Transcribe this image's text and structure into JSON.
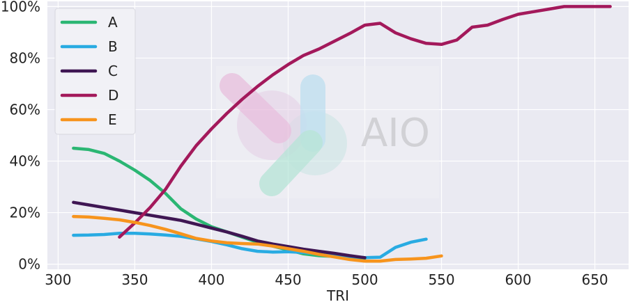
{
  "chart_data": {
    "type": "line",
    "xlabel": "TRI",
    "ylabel": "",
    "xlim": [
      293,
      672
    ],
    "ylim": [
      -0.02,
      1.02
    ],
    "x_ticks": [
      300,
      350,
      400,
      450,
      500,
      550,
      600,
      650
    ],
    "x_tick_labels": [
      "300",
      "350",
      "400",
      "450",
      "500",
      "550",
      "600",
      "650"
    ],
    "y_ticks": [
      0,
      0.2,
      0.4,
      0.6,
      0.8,
      1.0
    ],
    "y_tick_labels": [
      "0%",
      "20%",
      "40%",
      "60%",
      "80%",
      "100%"
    ],
    "grid": true,
    "legend_position": "top-left",
    "background": "#eaeaf2",
    "watermark": "AIO",
    "series": [
      {
        "name": "A",
        "color": "#2bb673",
        "x": [
          310,
          320,
          330,
          340,
          350,
          360,
          370,
          380,
          390,
          400,
          410,
          420,
          430,
          440,
          450,
          460,
          470,
          480,
          490,
          500
        ],
        "y": [
          0.45,
          0.445,
          0.43,
          0.4,
          0.365,
          0.325,
          0.275,
          0.215,
          0.175,
          0.145,
          0.125,
          0.105,
          0.085,
          0.07,
          0.055,
          0.04,
          0.033,
          0.03,
          0.025,
          0.022
        ]
      },
      {
        "name": "B",
        "color": "#29abe2",
        "x": [
          310,
          320,
          330,
          340,
          350,
          360,
          370,
          380,
          390,
          400,
          410,
          420,
          430,
          440,
          450,
          460,
          470,
          480,
          490,
          500,
          510,
          520,
          530,
          540
        ],
        "y": [
          0.112,
          0.113,
          0.115,
          0.12,
          0.12,
          0.117,
          0.113,
          0.108,
          0.098,
          0.088,
          0.075,
          0.06,
          0.05,
          0.047,
          0.048,
          0.045,
          0.04,
          0.035,
          0.03,
          0.025,
          0.027,
          0.065,
          0.085,
          0.097
        ]
      },
      {
        "name": "C",
        "color": "#3f1653",
        "x": [
          310,
          320,
          330,
          340,
          350,
          360,
          370,
          380,
          390,
          400,
          410,
          420,
          430,
          440,
          450,
          460,
          470,
          480,
          490,
          500
        ],
        "y": [
          0.24,
          0.23,
          0.22,
          0.21,
          0.2,
          0.19,
          0.18,
          0.17,
          0.155,
          0.14,
          0.125,
          0.108,
          0.09,
          0.078,
          0.068,
          0.058,
          0.05,
          0.042,
          0.033,
          0.025
        ]
      },
      {
        "name": "D",
        "color": "#a3195b",
        "x": [
          340,
          350,
          360,
          370,
          380,
          390,
          400,
          410,
          420,
          430,
          440,
          450,
          460,
          470,
          480,
          490,
          500,
          510,
          520,
          530,
          540,
          550,
          560,
          570,
          580,
          590,
          600,
          610,
          620,
          630,
          640,
          650,
          660
        ],
        "y": [
          0.105,
          0.16,
          0.22,
          0.29,
          0.38,
          0.46,
          0.525,
          0.585,
          0.64,
          0.69,
          0.735,
          0.775,
          0.81,
          0.835,
          0.865,
          0.895,
          0.928,
          0.935,
          0.898,
          0.875,
          0.857,
          0.853,
          0.87,
          0.92,
          0.928,
          0.95,
          0.97,
          0.98,
          0.99,
          1.0,
          1.0,
          1.0,
          1.0
        ]
      },
      {
        "name": "E",
        "color": "#f7941d",
        "x": [
          310,
          320,
          330,
          340,
          350,
          360,
          370,
          380,
          390,
          400,
          410,
          420,
          430,
          440,
          450,
          460,
          470,
          480,
          490,
          500,
          510,
          520,
          530,
          540,
          550
        ],
        "y": [
          0.185,
          0.183,
          0.178,
          0.172,
          0.162,
          0.15,
          0.135,
          0.118,
          0.1,
          0.09,
          0.083,
          0.08,
          0.078,
          0.07,
          0.06,
          0.05,
          0.038,
          0.028,
          0.018,
          0.012,
          0.012,
          0.018,
          0.02,
          0.023,
          0.032
        ]
      }
    ]
  }
}
